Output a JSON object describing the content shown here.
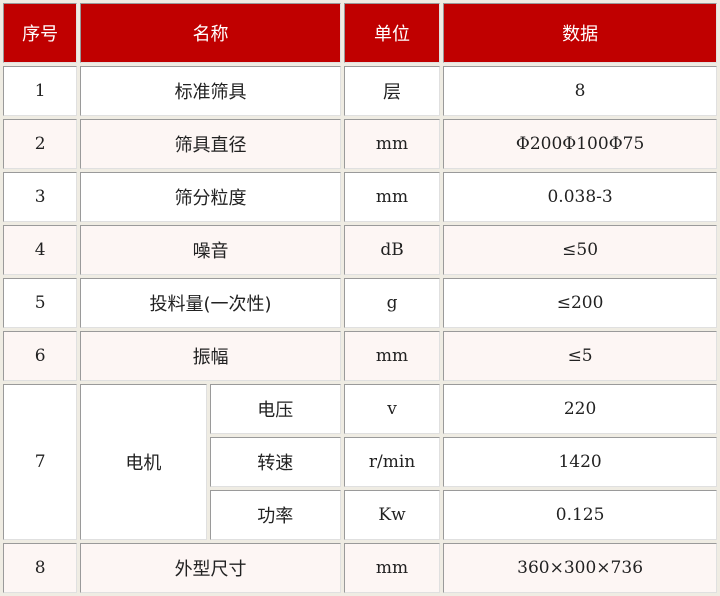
{
  "colors": {
    "header_bg": "#c00000",
    "header_text": "#ffffff",
    "alt_row_bg": "#fdf6f4"
  },
  "headers": [
    "序号",
    "名称",
    "单位",
    "数据"
  ],
  "rows": [
    {
      "no": "1",
      "name": "标准筛具",
      "unit": "层",
      "value": "8"
    },
    {
      "no": "2",
      "name": "筛具直径",
      "unit": "mm",
      "value": "Φ200Φ100Φ75"
    },
    {
      "no": "3",
      "name": "筛分粒度",
      "unit": "mm",
      "value": "0.038-3"
    },
    {
      "no": "4",
      "name": "噪音",
      "unit": "dB",
      "value": "≤50"
    },
    {
      "no": "5",
      "name": "投料量(一次性)",
      "unit": "g",
      "value": "≤200"
    },
    {
      "no": "6",
      "name": "振幅",
      "unit": "mm",
      "value": "≤5"
    }
  ],
  "motor": {
    "no": "7",
    "name": "电机",
    "sub": [
      {
        "name": "电压",
        "unit": "v",
        "value": "220"
      },
      {
        "name": "转速",
        "unit": "r/min",
        "value": "1420"
      },
      {
        "name": "功率",
        "unit": "Kw",
        "value": "0.125"
      }
    ]
  },
  "last": {
    "no": "8",
    "name": "外型尺寸",
    "unit": "mm",
    "value": "360×300×736"
  }
}
